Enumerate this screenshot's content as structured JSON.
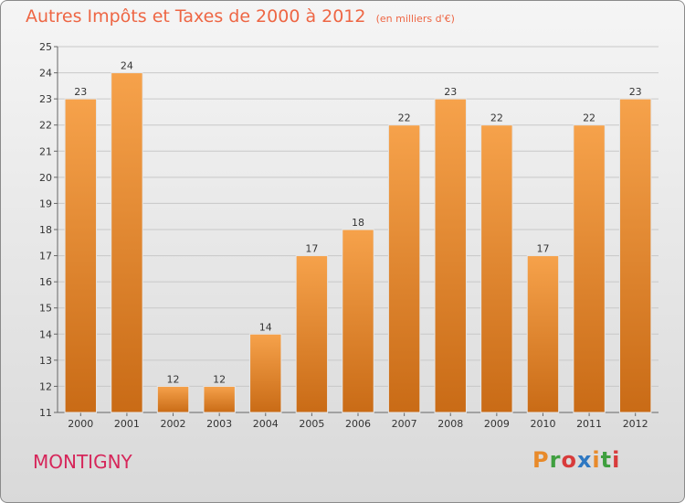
{
  "title": "Autres Impôts et Taxes de 2000 à 2012",
  "unit": "(en milliers d'€)",
  "commune": "MONTIGNY",
  "logo": {
    "text": "Proxiti",
    "letters": [
      {
        "char": "P",
        "color": "#e88a2a"
      },
      {
        "char": "r",
        "color": "#3f9f3f"
      },
      {
        "char": "o",
        "color": "#d83b3b"
      },
      {
        "char": "x",
        "color": "#2e78c2"
      },
      {
        "char": "i",
        "color": "#e88a2a"
      },
      {
        "char": "t",
        "color": "#3f9f3f"
      },
      {
        "char": "i",
        "color": "#d83b3b"
      }
    ]
  },
  "colors": {
    "bar_top": "#f6a24b",
    "bar_bottom": "#c96b16",
    "title": "#ee6644",
    "commune": "#d6265a",
    "grid": "#c8c8c8"
  },
  "chart_data": {
    "type": "bar",
    "title": "Autres Impôts et Taxes de 2000 à 2012",
    "subtitle": "(en milliers d'€)",
    "xlabel": "",
    "ylabel": "",
    "categories": [
      "2000",
      "2001",
      "2002",
      "2003",
      "2004",
      "2005",
      "2006",
      "2007",
      "2008",
      "2009",
      "2010",
      "2011",
      "2012"
    ],
    "values": [
      23,
      24,
      12,
      12,
      14,
      17,
      18,
      22,
      23,
      22,
      17,
      22,
      23
    ],
    "ylim": [
      11,
      25
    ],
    "yticks": [
      11,
      12,
      13,
      14,
      15,
      16,
      17,
      18,
      19,
      20,
      21,
      22,
      23,
      24,
      25
    ],
    "grid": true,
    "legend": "none"
  }
}
